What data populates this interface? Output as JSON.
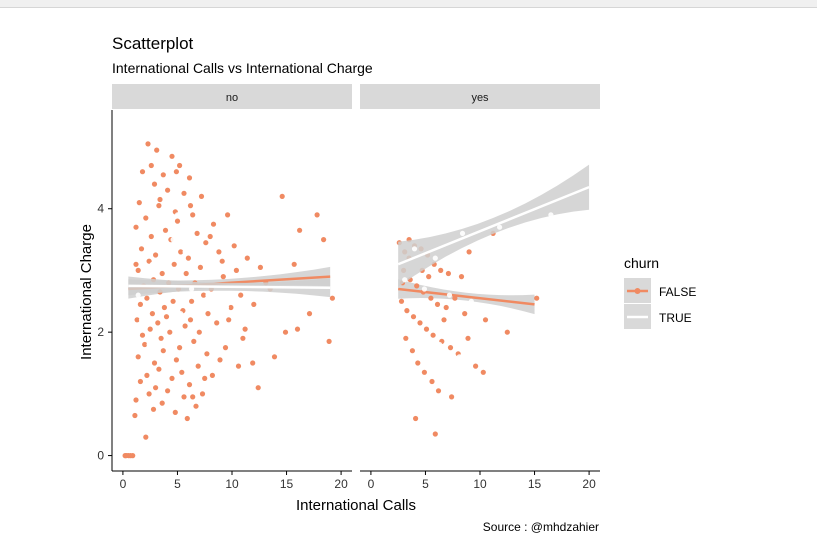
{
  "chart_data": {
    "type": "scatter",
    "title": "Scatterplot",
    "subtitle": "International Calls vs International Charge",
    "xlabel": "International Calls",
    "ylabel": "International Charge",
    "caption": "Source : @mhdzahier",
    "xlim": [
      -1,
      21
    ],
    "ylim": [
      -0.25,
      5.6
    ],
    "x_ticks": [
      0,
      5,
      10,
      15,
      20
    ],
    "y_ticks": [
      0,
      2,
      4
    ],
    "facet_by": "",
    "legend": {
      "title": "churn",
      "position": "right",
      "entries": [
        "FALSE",
        "TRUE"
      ]
    },
    "colors": {
      "FALSE": "#F08A62",
      "TRUE": "#FFFFFF",
      "strip": "#D9D9D9",
      "band": "#CFCFCF"
    },
    "panels": [
      {
        "label": "no",
        "series": [
          {
            "name": "FALSE",
            "points": [
              [
                2.3,
                5.05
              ],
              [
                3.1,
                4.95
              ],
              [
                4.5,
                4.85
              ],
              [
                5.2,
                4.7
              ],
              [
                1.8,
                4.6
              ],
              [
                3.7,
                4.55
              ],
              [
                6.1,
                4.5
              ],
              [
                2.9,
                4.4
              ],
              [
                4.1,
                4.3
              ],
              [
                5.6,
                4.25
              ],
              [
                7.2,
                4.2
              ],
              [
                1.5,
                4.1
              ],
              [
                3.3,
                4.05
              ],
              [
                4.8,
                3.95
              ],
              [
                6.4,
                3.9
              ],
              [
                2.1,
                3.85
              ],
              [
                5.0,
                3.8
              ],
              [
                8.3,
                3.75
              ],
              [
                9.6,
                3.9
              ],
              [
                1.2,
                3.7
              ],
              [
                3.9,
                3.65
              ],
              [
                6.8,
                3.6
              ],
              [
                2.6,
                3.55
              ],
              [
                4.4,
                3.5
              ],
              [
                7.6,
                3.45
              ],
              [
                10.2,
                3.4
              ],
              [
                1.7,
                3.35
              ],
              [
                5.3,
                3.3
              ],
              [
                8.8,
                3.3
              ],
              [
                3.0,
                3.25
              ],
              [
                6.0,
                3.2
              ],
              [
                11.4,
                3.2
              ],
              [
                2.4,
                3.15
              ],
              [
                4.7,
                3.1
              ],
              [
                7.1,
                3.05
              ],
              [
                12.6,
                3.05
              ],
              [
                1.4,
                3.0
              ],
              [
                3.6,
                2.95
              ],
              [
                5.8,
                2.95
              ],
              [
                9.2,
                2.9
              ],
              [
                2.8,
                2.85
              ],
              [
                4.2,
                2.8
              ],
              [
                6.6,
                2.8
              ],
              [
                13.1,
                2.8
              ],
              [
                1.9,
                2.75
              ],
              [
                5.1,
                2.7
              ],
              [
                8.1,
                2.7
              ],
              [
                3.4,
                2.65
              ],
              [
                7.4,
                2.6
              ],
              [
                10.8,
                2.6
              ],
              [
                2.2,
                2.55
              ],
              [
                4.6,
                2.5
              ],
              [
                6.3,
                2.5
              ],
              [
                1.6,
                2.45
              ],
              [
                3.8,
                2.4
              ],
              [
                9.9,
                2.4
              ],
              [
                5.5,
                2.35
              ],
              [
                2.7,
                2.3
              ],
              [
                7.8,
                2.3
              ],
              [
                4.0,
                2.25
              ],
              [
                1.3,
                2.2
              ],
              [
                6.2,
                2.2
              ],
              [
                3.2,
                2.15
              ],
              [
                8.6,
                2.15
              ],
              [
                5.7,
                2.1
              ],
              [
                2.5,
                2.05
              ],
              [
                11.2,
                2.05
              ],
              [
                4.3,
                2.0
              ],
              [
                7.0,
                2.0
              ],
              [
                1.8,
                1.95
              ],
              [
                3.5,
                1.9
              ],
              [
                6.5,
                1.85
              ],
              [
                2.0,
                1.8
              ],
              [
                5.2,
                1.75
              ],
              [
                9.4,
                1.75
              ],
              [
                3.7,
                1.7
              ],
              [
                7.7,
                1.65
              ],
              [
                1.4,
                1.6
              ],
              [
                4.9,
                1.55
              ],
              [
                2.9,
                1.5
              ],
              [
                6.9,
                1.45
              ],
              [
                10.6,
                1.45
              ],
              [
                3.3,
                1.4
              ],
              [
                5.4,
                1.35
              ],
              [
                2.2,
                1.3
              ],
              [
                8.2,
                1.3
              ],
              [
                4.5,
                1.25
              ],
              [
                1.6,
                1.2
              ],
              [
                6.1,
                1.15
              ],
              [
                3.0,
                1.1
              ],
              [
                12.4,
                1.1
              ],
              [
                4.1,
                1.05
              ],
              [
                2.4,
                1.0
              ],
              [
                7.3,
                1.0
              ],
              [
                5.6,
                0.95
              ],
              [
                1.2,
                0.9
              ],
              [
                3.6,
                0.85
              ],
              [
                6.7,
                0.8
              ],
              [
                2.8,
                0.75
              ],
              [
                4.8,
                0.7
              ],
              [
                1.1,
                0.65
              ],
              [
                5.9,
                0.6
              ],
              [
                2.1,
                0.3
              ],
              [
                14.6,
                4.2
              ],
              [
                17.8,
                3.9
              ],
              [
                16.2,
                3.65
              ],
              [
                18.4,
                3.5
              ],
              [
                15.7,
                3.1
              ],
              [
                19.2,
                2.55
              ],
              [
                17.1,
                2.3
              ],
              [
                16.0,
                2.05
              ],
              [
                18.9,
                1.85
              ],
              [
                14.9,
                2.0
              ],
              [
                13.9,
                1.6
              ],
              [
                11.9,
                1.5
              ],
              [
                0.2,
                0.0
              ],
              [
                0.5,
                0.0
              ],
              [
                0.9,
                0.0
              ],
              [
                0.3,
                0.0
              ],
              [
                0.7,
                0.0
              ],
              [
                1.2,
                3.1
              ],
              [
                2.6,
                4.7
              ],
              [
                3.4,
                4.15
              ],
              [
                4.9,
                4.6
              ],
              [
                6.2,
                4.05
              ],
              [
                8.0,
                3.55
              ],
              [
                9.1,
                3.15
              ],
              [
                10.4,
                3.0
              ],
              [
                12.0,
                2.45
              ],
              [
                13.5,
                2.7
              ],
              [
                11.0,
                1.9
              ],
              [
                9.7,
                2.2
              ],
              [
                8.9,
                1.55
              ],
              [
                7.5,
                1.25
              ],
              [
                6.4,
                0.95
              ]
            ],
            "fit": {
              "x": [
                0.5,
                19
              ],
              "y": [
                2.7,
                2.9
              ]
            }
          },
          {
            "name": "TRUE",
            "points": [
              [
                2.0,
                4.0
              ],
              [
                3.5,
                3.8
              ],
              [
                4.6,
                3.5
              ],
              [
                5.7,
                3.3
              ],
              [
                2.7,
                3.1
              ],
              [
                4.1,
                2.9
              ],
              [
                6.3,
                2.7
              ],
              [
                3.2,
                2.5
              ],
              [
                5.3,
                2.3
              ],
              [
                7.8,
                2.6
              ],
              [
                1.7,
                2.2
              ],
              [
                4.8,
                2.0
              ],
              [
                2.4,
                1.8
              ],
              [
                6.0,
                1.6
              ],
              [
                3.9,
                1.4
              ],
              [
                8.6,
                2.9
              ],
              [
                9.5,
                2.4
              ],
              [
                3.0,
                3.4
              ],
              [
                5.0,
                3.9
              ],
              [
                1.4,
                2.6
              ]
            ],
            "fit": {
              "x": [
                0.5,
                19
              ],
              "y": [
                2.75,
                2.72
              ]
            }
          }
        ]
      },
      {
        "label": "yes",
        "series": [
          {
            "name": "FALSE",
            "points": [
              [
                2.6,
                3.45
              ],
              [
                3.1,
                3.3
              ],
              [
                3.5,
                3.2
              ],
              [
                4.0,
                3.4
              ],
              [
                4.6,
                3.35
              ],
              [
                5.2,
                3.25
              ],
              [
                5.8,
                3.1
              ],
              [
                6.4,
                3.0
              ],
              [
                7.1,
                2.95
              ],
              [
                8.3,
                2.9
              ],
              [
                9.0,
                3.3
              ],
              [
                11.2,
                3.6
              ],
              [
                3.0,
                3.0
              ],
              [
                3.6,
                2.85
              ],
              [
                4.2,
                2.75
              ],
              [
                4.8,
                2.65
              ],
              [
                5.5,
                2.55
              ],
              [
                6.1,
                2.45
              ],
              [
                6.9,
                2.4
              ],
              [
                7.7,
                2.55
              ],
              [
                8.6,
                2.3
              ],
              [
                10.5,
                2.2
              ],
              [
                12.5,
                2.0
              ],
              [
                15.2,
                2.55
              ],
              [
                2.8,
                2.5
              ],
              [
                3.3,
                2.35
              ],
              [
                3.9,
                2.25
              ],
              [
                4.5,
                2.15
              ],
              [
                5.1,
                2.05
              ],
              [
                5.7,
                1.95
              ],
              [
                6.5,
                1.85
              ],
              [
                7.3,
                1.75
              ],
              [
                8.0,
                1.65
              ],
              [
                9.6,
                1.45
              ],
              [
                3.2,
                1.9
              ],
              [
                3.8,
                1.7
              ],
              [
                4.3,
                1.5
              ],
              [
                4.9,
                1.35
              ],
              [
                5.6,
                1.2
              ],
              [
                6.2,
                1.05
              ],
              [
                7.4,
                0.95
              ],
              [
                4.1,
                0.6
              ],
              [
                5.9,
                0.35
              ],
              [
                10.3,
                1.35
              ],
              [
                2.9,
                2.8
              ],
              [
                3.5,
                3.5
              ],
              [
                4.7,
                3.0
              ],
              [
                5.3,
                2.9
              ],
              [
                6.7,
                2.2
              ],
              [
                8.9,
                1.9
              ]
            ],
            "fit": {
              "x": [
                2.5,
                15
              ],
              "y": [
                2.7,
                2.45
              ]
            }
          },
          {
            "name": "TRUE",
            "points": [
              [
                5.6,
                5.4
              ],
              [
                2.8,
                4.9
              ],
              [
                4.3,
                4.6
              ],
              [
                6.0,
                4.45
              ],
              [
                7.8,
                4.3
              ],
              [
                1.5,
                4.1
              ],
              [
                3.4,
                4.0
              ],
              [
                5.2,
                3.95
              ],
              [
                6.7,
                3.8
              ],
              [
                8.4,
                3.6
              ],
              [
                2.2,
                3.55
              ],
              [
                4.0,
                3.35
              ],
              [
                5.9,
                3.2
              ],
              [
                1.8,
                3.0
              ],
              [
                3.1,
                2.85
              ],
              [
                4.9,
                2.7
              ],
              [
                7.2,
                2.6
              ],
              [
                9.2,
                2.5
              ],
              [
                1.3,
                2.3
              ],
              [
                2.6,
                2.1
              ],
              [
                4.4,
                1.95
              ],
              [
                6.3,
                1.8
              ],
              [
                8.1,
                1.6
              ],
              [
                2.0,
                1.4
              ],
              [
                3.7,
                1.2
              ],
              [
                5.5,
                1.0
              ],
              [
                1.6,
                0.8
              ],
              [
                10.2,
                3.2
              ],
              [
                11.8,
                3.7
              ],
              [
                13.4,
                3.0
              ],
              [
                16.5,
                3.9
              ],
              [
                14.6,
                2.2
              ]
            ],
            "fit": {
              "x": [
                2.5,
                20
              ],
              "y": [
                3.1,
                4.35
              ]
            }
          }
        ]
      }
    ]
  }
}
